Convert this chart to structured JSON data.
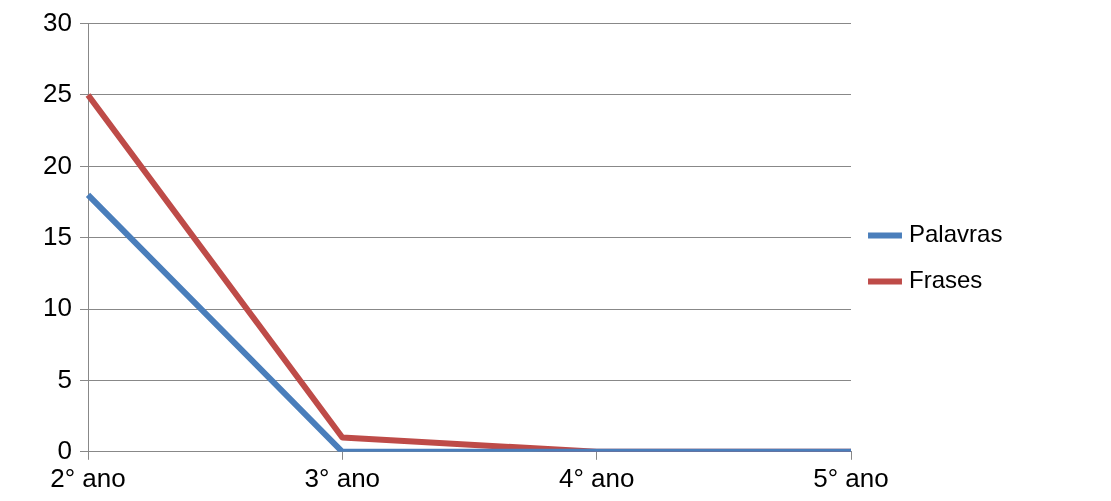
{
  "chart_data": {
    "type": "line",
    "categories": [
      "2° ano",
      "3° ano",
      "4° ano",
      "5° ano"
    ],
    "series": [
      {
        "name": "Palavras",
        "color": "#4a7ebb",
        "values": [
          18,
          0,
          0,
          0
        ]
      },
      {
        "name": "Frases",
        "color": "#be4b48",
        "values": [
          25,
          1,
          0,
          0
        ]
      }
    ],
    "ylim": [
      0,
      30
    ],
    "yticks": [
      0,
      5,
      10,
      15,
      20,
      25,
      30
    ],
    "grid": "y",
    "legend": "right",
    "marker": "none",
    "line_style": "solid"
  }
}
